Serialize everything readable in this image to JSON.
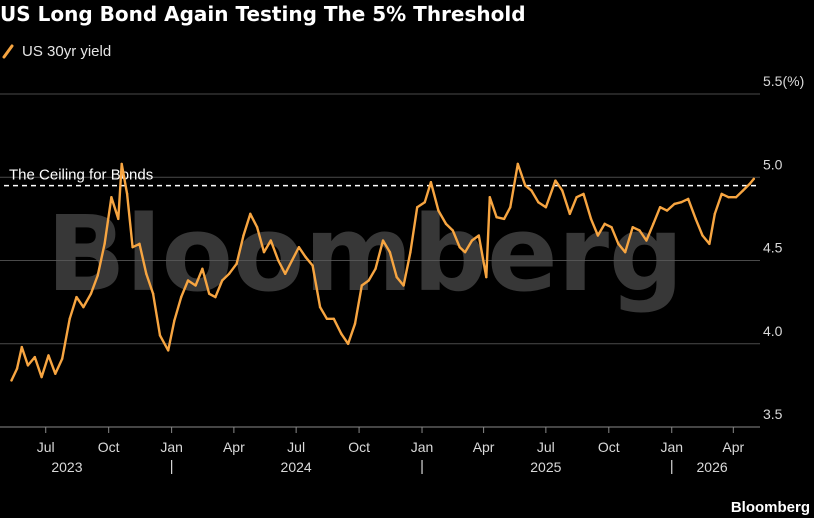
{
  "colors": {
    "series": "#f7a541",
    "background": "#000000",
    "grid": "#4a4a4a",
    "threshold": "#ffffff"
  },
  "watermark": "Bloomberg",
  "source": "Bloomberg",
  "chart_data": {
    "type": "line",
    "title": "US Long Bond Again Testing The 5% Threshold",
    "ylabel": "(%)",
    "ylim": [
      3.5,
      5.5
    ],
    "y_ticks": [
      3.5,
      4.0,
      4.5,
      5.0,
      5.5
    ],
    "y_tick_labels": [
      "3.5",
      "4.0",
      "4.5",
      "5.0",
      "5.5(%)"
    ],
    "y_axis_side": "right",
    "grid": true,
    "legend_position": "top-left",
    "x_ticks": [
      "2023-07-01",
      "2023-10-01",
      "2024-01-01",
      "2024-04-01",
      "2024-07-01",
      "2024-10-01",
      "2025-01-01",
      "2025-04-01",
      "2025-07-01",
      "2025-10-01",
      "2026-01-01",
      "2026-04-01"
    ],
    "x_tick_labels": [
      "Jul",
      "Oct",
      "Jan",
      "Apr",
      "Jul",
      "Oct",
      "Jan",
      "Apr",
      "Jul",
      "Oct",
      "Jan",
      "Apr"
    ],
    "year_labels": [
      "2023",
      "2024",
      "2025",
      "2026"
    ],
    "year_label_positions": [
      "2023-08-01",
      "2024-07-01",
      "2025-07-01",
      "2026-03-01"
    ],
    "year_separators": [
      "2024-01-01",
      "2025-01-01",
      "2026-01-01"
    ],
    "threshold": {
      "y": 4.95,
      "label": "The Ceiling for Bonds"
    },
    "series": [
      {
        "name": "US 30yr yield",
        "points": [
          [
            "2023-05-12",
            3.78
          ],
          [
            "2023-05-20",
            3.85
          ],
          [
            "2023-05-27",
            3.98
          ],
          [
            "2023-06-05",
            3.87
          ],
          [
            "2023-06-15",
            3.92
          ],
          [
            "2023-06-25",
            3.8
          ],
          [
            "2023-07-05",
            3.93
          ],
          [
            "2023-07-15",
            3.82
          ],
          [
            "2023-07-25",
            3.91
          ],
          [
            "2023-08-05",
            4.15
          ],
          [
            "2023-08-15",
            4.28
          ],
          [
            "2023-08-25",
            4.22
          ],
          [
            "2023-09-05",
            4.3
          ],
          [
            "2023-09-15",
            4.41
          ],
          [
            "2023-09-25",
            4.6
          ],
          [
            "2023-10-05",
            4.88
          ],
          [
            "2023-10-15",
            4.75
          ],
          [
            "2023-10-20",
            5.08
          ],
          [
            "2023-10-28",
            4.9
          ],
          [
            "2023-11-05",
            4.58
          ],
          [
            "2023-11-15",
            4.6
          ],
          [
            "2023-11-25",
            4.42
          ],
          [
            "2023-12-05",
            4.3
          ],
          [
            "2023-12-15",
            4.05
          ],
          [
            "2023-12-27",
            3.96
          ],
          [
            "2024-01-05",
            4.14
          ],
          [
            "2024-01-15",
            4.28
          ],
          [
            "2024-01-25",
            4.38
          ],
          [
            "2024-02-05",
            4.35
          ],
          [
            "2024-02-15",
            4.45
          ],
          [
            "2024-02-25",
            4.3
          ],
          [
            "2024-03-05",
            4.28
          ],
          [
            "2024-03-15",
            4.38
          ],
          [
            "2024-03-25",
            4.42
          ],
          [
            "2024-04-05",
            4.48
          ],
          [
            "2024-04-15",
            4.65
          ],
          [
            "2024-04-25",
            4.78
          ],
          [
            "2024-05-05",
            4.7
          ],
          [
            "2024-05-15",
            4.55
          ],
          [
            "2024-05-25",
            4.62
          ],
          [
            "2024-06-05",
            4.5
          ],
          [
            "2024-06-15",
            4.42
          ],
          [
            "2024-06-25",
            4.5
          ],
          [
            "2024-07-05",
            4.58
          ],
          [
            "2024-07-15",
            4.52
          ],
          [
            "2024-07-25",
            4.47
          ],
          [
            "2024-08-05",
            4.22
          ],
          [
            "2024-08-15",
            4.15
          ],
          [
            "2024-08-25",
            4.15
          ],
          [
            "2024-09-05",
            4.06
          ],
          [
            "2024-09-15",
            4.0
          ],
          [
            "2024-09-25",
            4.12
          ],
          [
            "2024-10-05",
            4.35
          ],
          [
            "2024-10-15",
            4.38
          ],
          [
            "2024-10-25",
            4.45
          ],
          [
            "2024-11-05",
            4.62
          ],
          [
            "2024-11-15",
            4.55
          ],
          [
            "2024-11-25",
            4.4
          ],
          [
            "2024-12-05",
            4.35
          ],
          [
            "2024-12-15",
            4.55
          ],
          [
            "2024-12-25",
            4.82
          ],
          [
            "2025-01-05",
            4.85
          ],
          [
            "2025-01-14",
            4.97
          ],
          [
            "2025-01-25",
            4.8
          ],
          [
            "2025-02-05",
            4.72
          ],
          [
            "2025-02-15",
            4.68
          ],
          [
            "2025-02-25",
            4.58
          ],
          [
            "2025-03-05",
            4.55
          ],
          [
            "2025-03-15",
            4.62
          ],
          [
            "2025-03-25",
            4.65
          ],
          [
            "2025-04-05",
            4.4
          ],
          [
            "2025-04-10",
            4.88
          ],
          [
            "2025-04-20",
            4.76
          ],
          [
            "2025-05-01",
            4.75
          ],
          [
            "2025-05-10",
            4.82
          ],
          [
            "2025-05-21",
            5.08
          ],
          [
            "2025-06-01",
            4.95
          ],
          [
            "2025-06-10",
            4.92
          ],
          [
            "2025-06-20",
            4.85
          ],
          [
            "2025-07-01",
            4.82
          ],
          [
            "2025-07-15",
            4.98
          ],
          [
            "2025-07-25",
            4.92
          ],
          [
            "2025-08-05",
            4.78
          ],
          [
            "2025-08-15",
            4.88
          ],
          [
            "2025-08-25",
            4.9
          ],
          [
            "2025-09-05",
            4.75
          ],
          [
            "2025-09-15",
            4.65
          ],
          [
            "2025-09-25",
            4.72
          ],
          [
            "2025-10-05",
            4.7
          ],
          [
            "2025-10-15",
            4.6
          ],
          [
            "2025-10-25",
            4.55
          ],
          [
            "2025-11-05",
            4.7
          ],
          [
            "2025-11-15",
            4.68
          ],
          [
            "2025-11-25",
            4.62
          ],
          [
            "2025-12-05",
            4.72
          ],
          [
            "2025-12-15",
            4.82
          ],
          [
            "2025-12-25",
            4.8
          ],
          [
            "2026-01-05",
            4.84
          ],
          [
            "2026-01-15",
            4.85
          ],
          [
            "2026-01-25",
            4.87
          ],
          [
            "2026-02-05",
            4.75
          ],
          [
            "2026-02-15",
            4.65
          ],
          [
            "2026-02-25",
            4.6
          ],
          [
            "2026-03-05",
            4.78
          ],
          [
            "2026-03-15",
            4.9
          ],
          [
            "2026-03-25",
            4.88
          ],
          [
            "2026-04-05",
            4.88
          ],
          [
            "2026-04-15",
            4.92
          ],
          [
            "2026-04-25",
            4.96
          ],
          [
            "2026-05-01",
            4.99
          ]
        ]
      }
    ]
  }
}
